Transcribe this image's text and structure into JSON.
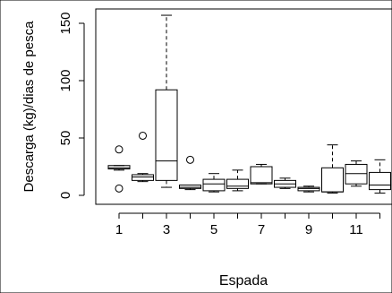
{
  "chart_data": {
    "type": "boxplot",
    "x_label": "Espada",
    "y_label": "Descarga (kg)/dias de pesca",
    "categories": [
      1,
      null,
      3,
      null,
      5,
      null,
      7,
      null,
      9,
      null,
      11,
      null
    ],
    "boxes": [
      {
        "min": 22,
        "q1": 23,
        "median": 24,
        "q3": 26,
        "max": 26,
        "outliers": [
          40,
          6
        ]
      },
      {
        "min": 12,
        "q1": 13,
        "median": 16,
        "q3": 18,
        "max": 19,
        "outliers": [
          52
        ]
      },
      {
        "min": 7,
        "q1": 13,
        "median": 30,
        "q3": 92,
        "max": 157,
        "outliers": []
      },
      {
        "min": 5,
        "q1": 6,
        "median": 7,
        "q3": 9,
        "max": 9,
        "outliers": [
          31
        ]
      },
      {
        "min": 3,
        "q1": 4,
        "median": 10,
        "q3": 14,
        "max": 19,
        "outliers": []
      },
      {
        "min": 4,
        "q1": 6,
        "median": 8,
        "q3": 14,
        "max": 22,
        "outliers": []
      },
      {
        "min": 10,
        "q1": 10,
        "median": 11,
        "q3": 25,
        "max": 27,
        "outliers": []
      },
      {
        "min": 6,
        "q1": 7,
        "median": 10,
        "q3": 13,
        "max": 15,
        "outliers": []
      },
      {
        "min": 3,
        "q1": 4,
        "median": 6,
        "q3": 7,
        "max": 8,
        "outliers": []
      },
      {
        "min": 2,
        "q1": 3,
        "median": 3,
        "q3": 24,
        "max": 44,
        "outliers": []
      },
      {
        "min": 8,
        "q1": 10,
        "median": 19,
        "q3": 27,
        "max": 30,
        "outliers": []
      },
      {
        "min": 2,
        "q1": 5,
        "median": 9,
        "q3": 20,
        "max": 31,
        "outliers": []
      }
    ],
    "color": "#000000",
    "ylim": [
      -7.8,
      162.5
    ],
    "yticks": [
      0,
      50,
      100,
      150
    ]
  }
}
